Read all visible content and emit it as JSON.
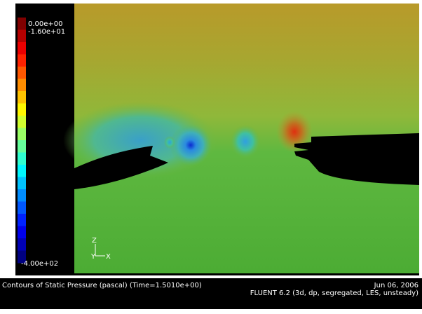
{
  "colorbar": {
    "labels": [
      "0.00e+00",
      "-1.60e+01",
      "-4.00e+02"
    ]
  },
  "axes_triad": {
    "z": "Z",
    "y": "Y",
    "x": "X"
  },
  "footer": {
    "title": "Contours of Static Pressure (pascal)  (Time=1.5010e+00)",
    "date": "Jun 06, 2006",
    "solver": "FLUENT 6.2 (3d, dp, segregated, LES, unsteady)"
  }
}
